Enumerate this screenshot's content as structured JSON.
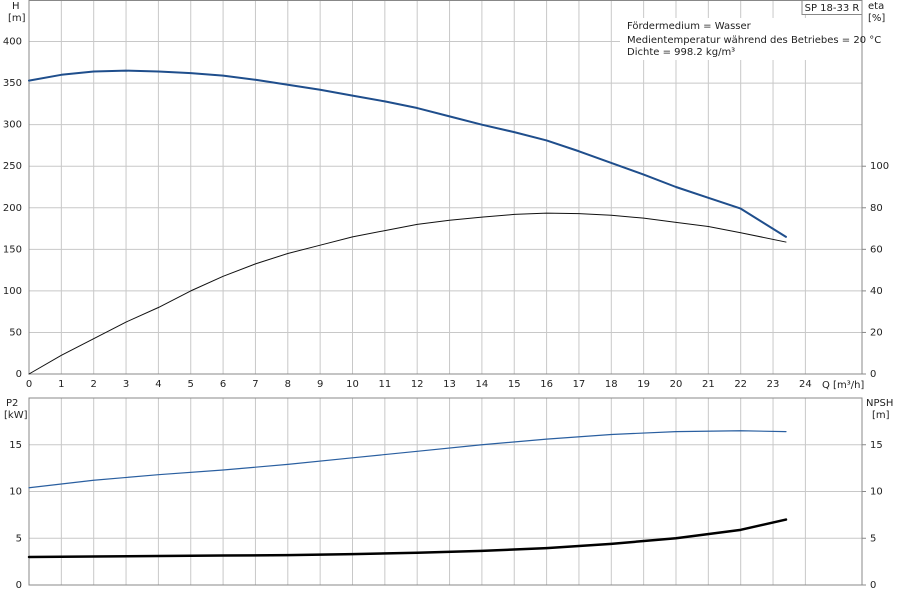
{
  "chart_data": [
    {
      "type": "line",
      "title": "SP 18-33 R",
      "annotations": [
        "Fördermedium = Wasser",
        "Medientemperatur während des Betriebes = 20 °C",
        "Dichte = 998.2 kg/m³"
      ],
      "ylabel": "H",
      "yunit": "[m]",
      "y2label": "eta",
      "y2unit": "[%]",
      "xlabel": "Q [m³/h]",
      "x": [
        0,
        1,
        2,
        3,
        4,
        5,
        6,
        7,
        8,
        9,
        10,
        11,
        12,
        13,
        14,
        15,
        16,
        17,
        18,
        19,
        20,
        21,
        22,
        23.4
      ],
      "series": [
        {
          "name": "H",
          "color": "#1f4e8c",
          "axis": "y",
          "values": [
            353,
            360,
            364,
            365,
            364,
            362,
            359,
            354,
            348,
            342,
            335,
            328,
            320,
            310,
            300,
            291,
            281,
            268,
            254,
            240,
            225,
            212,
            199,
            165
          ]
        },
        {
          "name": "eta",
          "color": "#111111",
          "axis": "y2",
          "values": [
            0,
            9,
            17,
            25,
            32,
            40,
            47,
            53,
            58,
            62,
            66,
            69,
            72,
            74,
            75.5,
            76.8,
            77.4,
            77.2,
            76.4,
            75,
            73,
            71,
            68,
            63.5
          ]
        }
      ],
      "xlim": [
        0,
        25.75
      ],
      "ylim": [
        0,
        450
      ],
      "y2lim": [
        0,
        180
      ],
      "xticks": [
        0,
        1,
        2,
        3,
        4,
        5,
        6,
        7,
        8,
        9,
        10,
        11,
        12,
        13,
        14,
        15,
        16,
        17,
        18,
        19,
        20,
        21,
        22,
        23,
        24
      ],
      "yticks": [
        0,
        50,
        100,
        150,
        200,
        250,
        300,
        350,
        400
      ],
      "y2ticks": [
        0,
        20,
        40,
        60,
        80,
        100
      ],
      "grid": true,
      "xtick_labels": true
    },
    {
      "type": "line",
      "ylabel": "P2",
      "yunit": "[kW]",
      "y2label": "NPSH",
      "y2unit": "[m]",
      "x": [
        0,
        2,
        4,
        6,
        8,
        10,
        12,
        14,
        16,
        18,
        20,
        22,
        23.4
      ],
      "series": [
        {
          "name": "P2",
          "color": "#2a5fa0",
          "axis": "y",
          "values": [
            10.4,
            11.2,
            11.8,
            12.3,
            12.9,
            13.6,
            14.3,
            15.0,
            15.6,
            16.1,
            16.4,
            16.5,
            16.4
          ]
        },
        {
          "name": "NPSH",
          "color": "#000000",
          "axis": "y2",
          "values": [
            3.0,
            3.05,
            3.1,
            3.15,
            3.2,
            3.3,
            3.45,
            3.65,
            3.95,
            4.4,
            5.0,
            5.9,
            7.0
          ]
        }
      ],
      "xlim": [
        0,
        25.75
      ],
      "ylim": [
        0,
        20
      ],
      "y2lim": [
        0,
        20
      ],
      "xticks": [
        0,
        1,
        2,
        3,
        4,
        5,
        6,
        7,
        8,
        9,
        10,
        11,
        12,
        13,
        14,
        15,
        16,
        17,
        18,
        19,
        20,
        21,
        22,
        23,
        24
      ],
      "yticks": [
        0,
        5,
        10,
        15
      ],
      "y2ticks": [
        0,
        5,
        10,
        15
      ],
      "grid": true,
      "xtick_labels": false
    }
  ]
}
